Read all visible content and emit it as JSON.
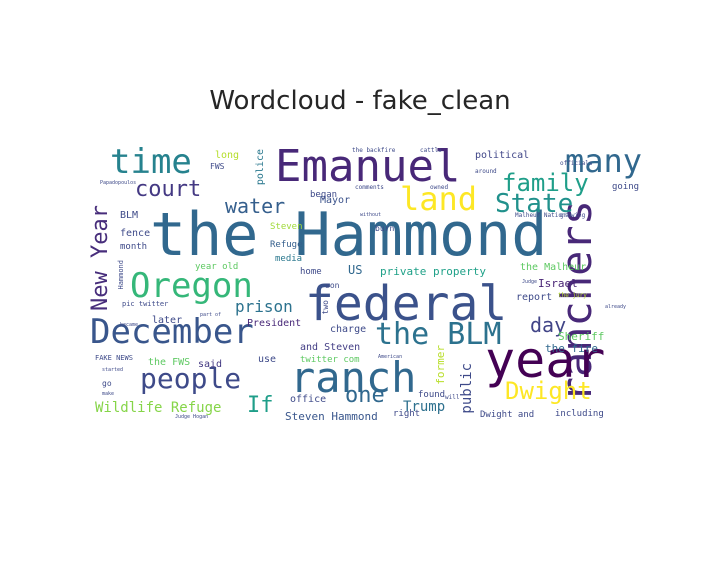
{
  "chart_data": {
    "type": "wordcloud",
    "title": "Wordcloud - fake_clean",
    "words": [
      {
        "text": "the Hammond",
        "weight": 100,
        "color": "#31688e"
      },
      {
        "text": "federal",
        "weight": 72,
        "color": "#3b528b"
      },
      {
        "text": "Emanuel",
        "weight": 64,
        "color": "#482878"
      },
      {
        "text": "ranch",
        "weight": 62,
        "color": "#31688e"
      },
      {
        "text": "ranchers",
        "weight": 60,
        "color": "#482878"
      },
      {
        "text": "year",
        "weight": 60,
        "color": "#440154"
      },
      {
        "text": "December",
        "weight": 50,
        "color": "#39568c"
      },
      {
        "text": "time",
        "weight": 46,
        "color": "#26828e"
      },
      {
        "text": "Oregon",
        "weight": 45,
        "color": "#35b779"
      },
      {
        "text": "many",
        "weight": 42,
        "color": "#31688e"
      },
      {
        "text": "land",
        "weight": 40,
        "color": "#fde725"
      },
      {
        "text": "the BLM",
        "weight": 40,
        "color": "#2c728e"
      },
      {
        "text": "people",
        "weight": 36,
        "color": "#3e4a89"
      },
      {
        "text": "State",
        "weight": 34,
        "color": "#21918c"
      },
      {
        "text": "family",
        "weight": 32,
        "color": "#1f9e89"
      },
      {
        "text": "New Year",
        "weight": 30,
        "color": "#472d7b"
      },
      {
        "text": "Dwight",
        "weight": 28,
        "color": "#fde725"
      },
      {
        "text": "court",
        "weight": 26,
        "color": "#443983"
      },
      {
        "text": "one",
        "weight": 26,
        "color": "#31688e"
      },
      {
        "text": "If",
        "weight": 26,
        "color": "#1f9e89"
      },
      {
        "text": "day",
        "weight": 24,
        "color": "#414487"
      },
      {
        "text": "water",
        "weight": 22,
        "color": "#355f8d"
      },
      {
        "text": "prison",
        "weight": 18,
        "color": "#2c728e"
      },
      {
        "text": "Wildlife Refuge",
        "weight": 16,
        "color": "#86d549"
      },
      {
        "text": "public",
        "weight": 14,
        "color": "#3e4a89"
      },
      {
        "text": "Trump",
        "weight": 14,
        "color": "#2d708e"
      },
      {
        "text": "Steven Hammond",
        "weight": 12,
        "color": "#39568c"
      },
      {
        "text": "former",
        "weight": 12,
        "color": "#b8de29"
      },
      {
        "text": "the fire",
        "weight": 12,
        "color": "#31688e"
      },
      {
        "text": "private property",
        "weight": 12,
        "color": "#1fa188"
      },
      {
        "text": "Israel",
        "weight": 12,
        "color": "#482475"
      },
      {
        "text": "Sheriff",
        "weight": 12,
        "color": "#5ec962"
      },
      {
        "text": "police",
        "weight": 11,
        "color": "#2a788e"
      },
      {
        "text": "political",
        "weight": 11,
        "color": "#404688"
      },
      {
        "text": "Mayor",
        "weight": 10,
        "color": "#3b528b"
      },
      {
        "text": "began",
        "weight": 10,
        "color": "#3e4a89"
      },
      {
        "text": "Steven",
        "weight": 10,
        "color": "#a0da39"
      },
      {
        "text": "Refuge",
        "weight": 10,
        "color": "#355f8d"
      },
      {
        "text": "media",
        "weight": 10,
        "color": "#2a788e"
      },
      {
        "text": "home",
        "weight": 10,
        "color": "#3e4a89"
      },
      {
        "text": "US",
        "weight": 12,
        "color": "#31688e"
      },
      {
        "text": "the Malheur",
        "weight": 10,
        "color": "#5ec962"
      },
      {
        "text": "report",
        "weight": 10,
        "color": "#3e4a89"
      },
      {
        "text": "later",
        "weight": 10,
        "color": "#3e4a89"
      },
      {
        "text": "President",
        "weight": 10,
        "color": "#482878"
      },
      {
        "text": "charge",
        "weight": 10,
        "color": "#3e4a89"
      },
      {
        "text": "and Steven",
        "weight": 10,
        "color": "#433e85"
      },
      {
        "text": "twitter com",
        "weight": 9,
        "color": "#5ec962"
      },
      {
        "text": "use",
        "weight": 10,
        "color": "#3e4a89"
      },
      {
        "text": "said",
        "weight": 10,
        "color": "#443983"
      },
      {
        "text": "the FWS",
        "weight": 10,
        "color": "#5ec962"
      },
      {
        "text": "office",
        "weight": 10,
        "color": "#3e4a89"
      },
      {
        "text": "right",
        "weight": 9,
        "color": "#3e4a89"
      },
      {
        "text": "found",
        "weight": 9,
        "color": "#3e4a89"
      },
      {
        "text": "Dwight and",
        "weight": 9,
        "color": "#3e4a89"
      },
      {
        "text": "including",
        "weight": 9,
        "color": "#3e4a89"
      },
      {
        "text": "BLM",
        "weight": 10,
        "color": "#3e4a89"
      },
      {
        "text": "fence",
        "weight": 10,
        "color": "#3e4a89"
      },
      {
        "text": "month",
        "weight": 9,
        "color": "#3e4a89"
      },
      {
        "text": "year old",
        "weight": 9,
        "color": "#5ec962"
      },
      {
        "text": "pic twitter",
        "weight": 8,
        "color": "#3e4a89"
      },
      {
        "text": "FAKE NEWS",
        "weight": 8,
        "color": "#3e4a89"
      },
      {
        "text": "Hammond",
        "weight": 8,
        "color": "#3e4a89"
      },
      {
        "text": "long",
        "weight": 10,
        "color": "#b5de2b"
      },
      {
        "text": "FWS",
        "weight": 8,
        "color": "#3e4a89"
      },
      {
        "text": "going",
        "weight": 9,
        "color": "#3e4a89"
      },
      {
        "text": "son",
        "weight": 8,
        "color": "#3e4a89"
      },
      {
        "text": "two",
        "weight": 8,
        "color": "#3e4a89"
      },
      {
        "text": "burn",
        "weight": 8,
        "color": "#3e4a89"
      },
      {
        "text": "go",
        "weight": 8,
        "color": "#3e4a89"
      },
      {
        "text": "the backfire",
        "weight": 6,
        "color": "#3e4a89"
      },
      {
        "text": "cattle",
        "weight": 6,
        "color": "#3e4a89"
      },
      {
        "text": "officials",
        "weight": 6,
        "color": "#3e4a89"
      },
      {
        "text": "around",
        "weight": 6,
        "color": "#3e4a89"
      },
      {
        "text": "owned",
        "weight": 6,
        "color": "#3e4a89"
      },
      {
        "text": "comments",
        "weight": 6,
        "color": "#3e4a89"
      },
      {
        "text": "Malheur National",
        "weight": 6,
        "color": "#3e4a89"
      },
      {
        "text": "growing",
        "weight": 6,
        "color": "#3e4a89"
      },
      {
        "text": "Papadopoulos",
        "weight": 5,
        "color": "#3e4a89"
      },
      {
        "text": "without",
        "weight": 5,
        "color": "#3e4a89"
      },
      {
        "text": "will",
        "weight": 6,
        "color": "#3e4a89"
      },
      {
        "text": "Judge",
        "weight": 5,
        "color": "#3e4a89"
      },
      {
        "text": "the jury",
        "weight": 6,
        "color": "#b5de2b"
      },
      {
        "text": "already",
        "weight": 5,
        "color": "#3e4a89"
      },
      {
        "text": "part of",
        "weight": 5,
        "color": "#3e4a89"
      },
      {
        "text": "became",
        "weight": 5,
        "color": "#3e4a89"
      },
      {
        "text": "American",
        "weight": 5,
        "color": "#3e4a89"
      },
      {
        "text": "make",
        "weight": 5,
        "color": "#3e4a89"
      },
      {
        "text": "started",
        "weight": 5,
        "color": "#3e4a89"
      },
      {
        "text": "Judge Hogan",
        "weight": 5,
        "color": "#3e4a89"
      }
    ]
  }
}
